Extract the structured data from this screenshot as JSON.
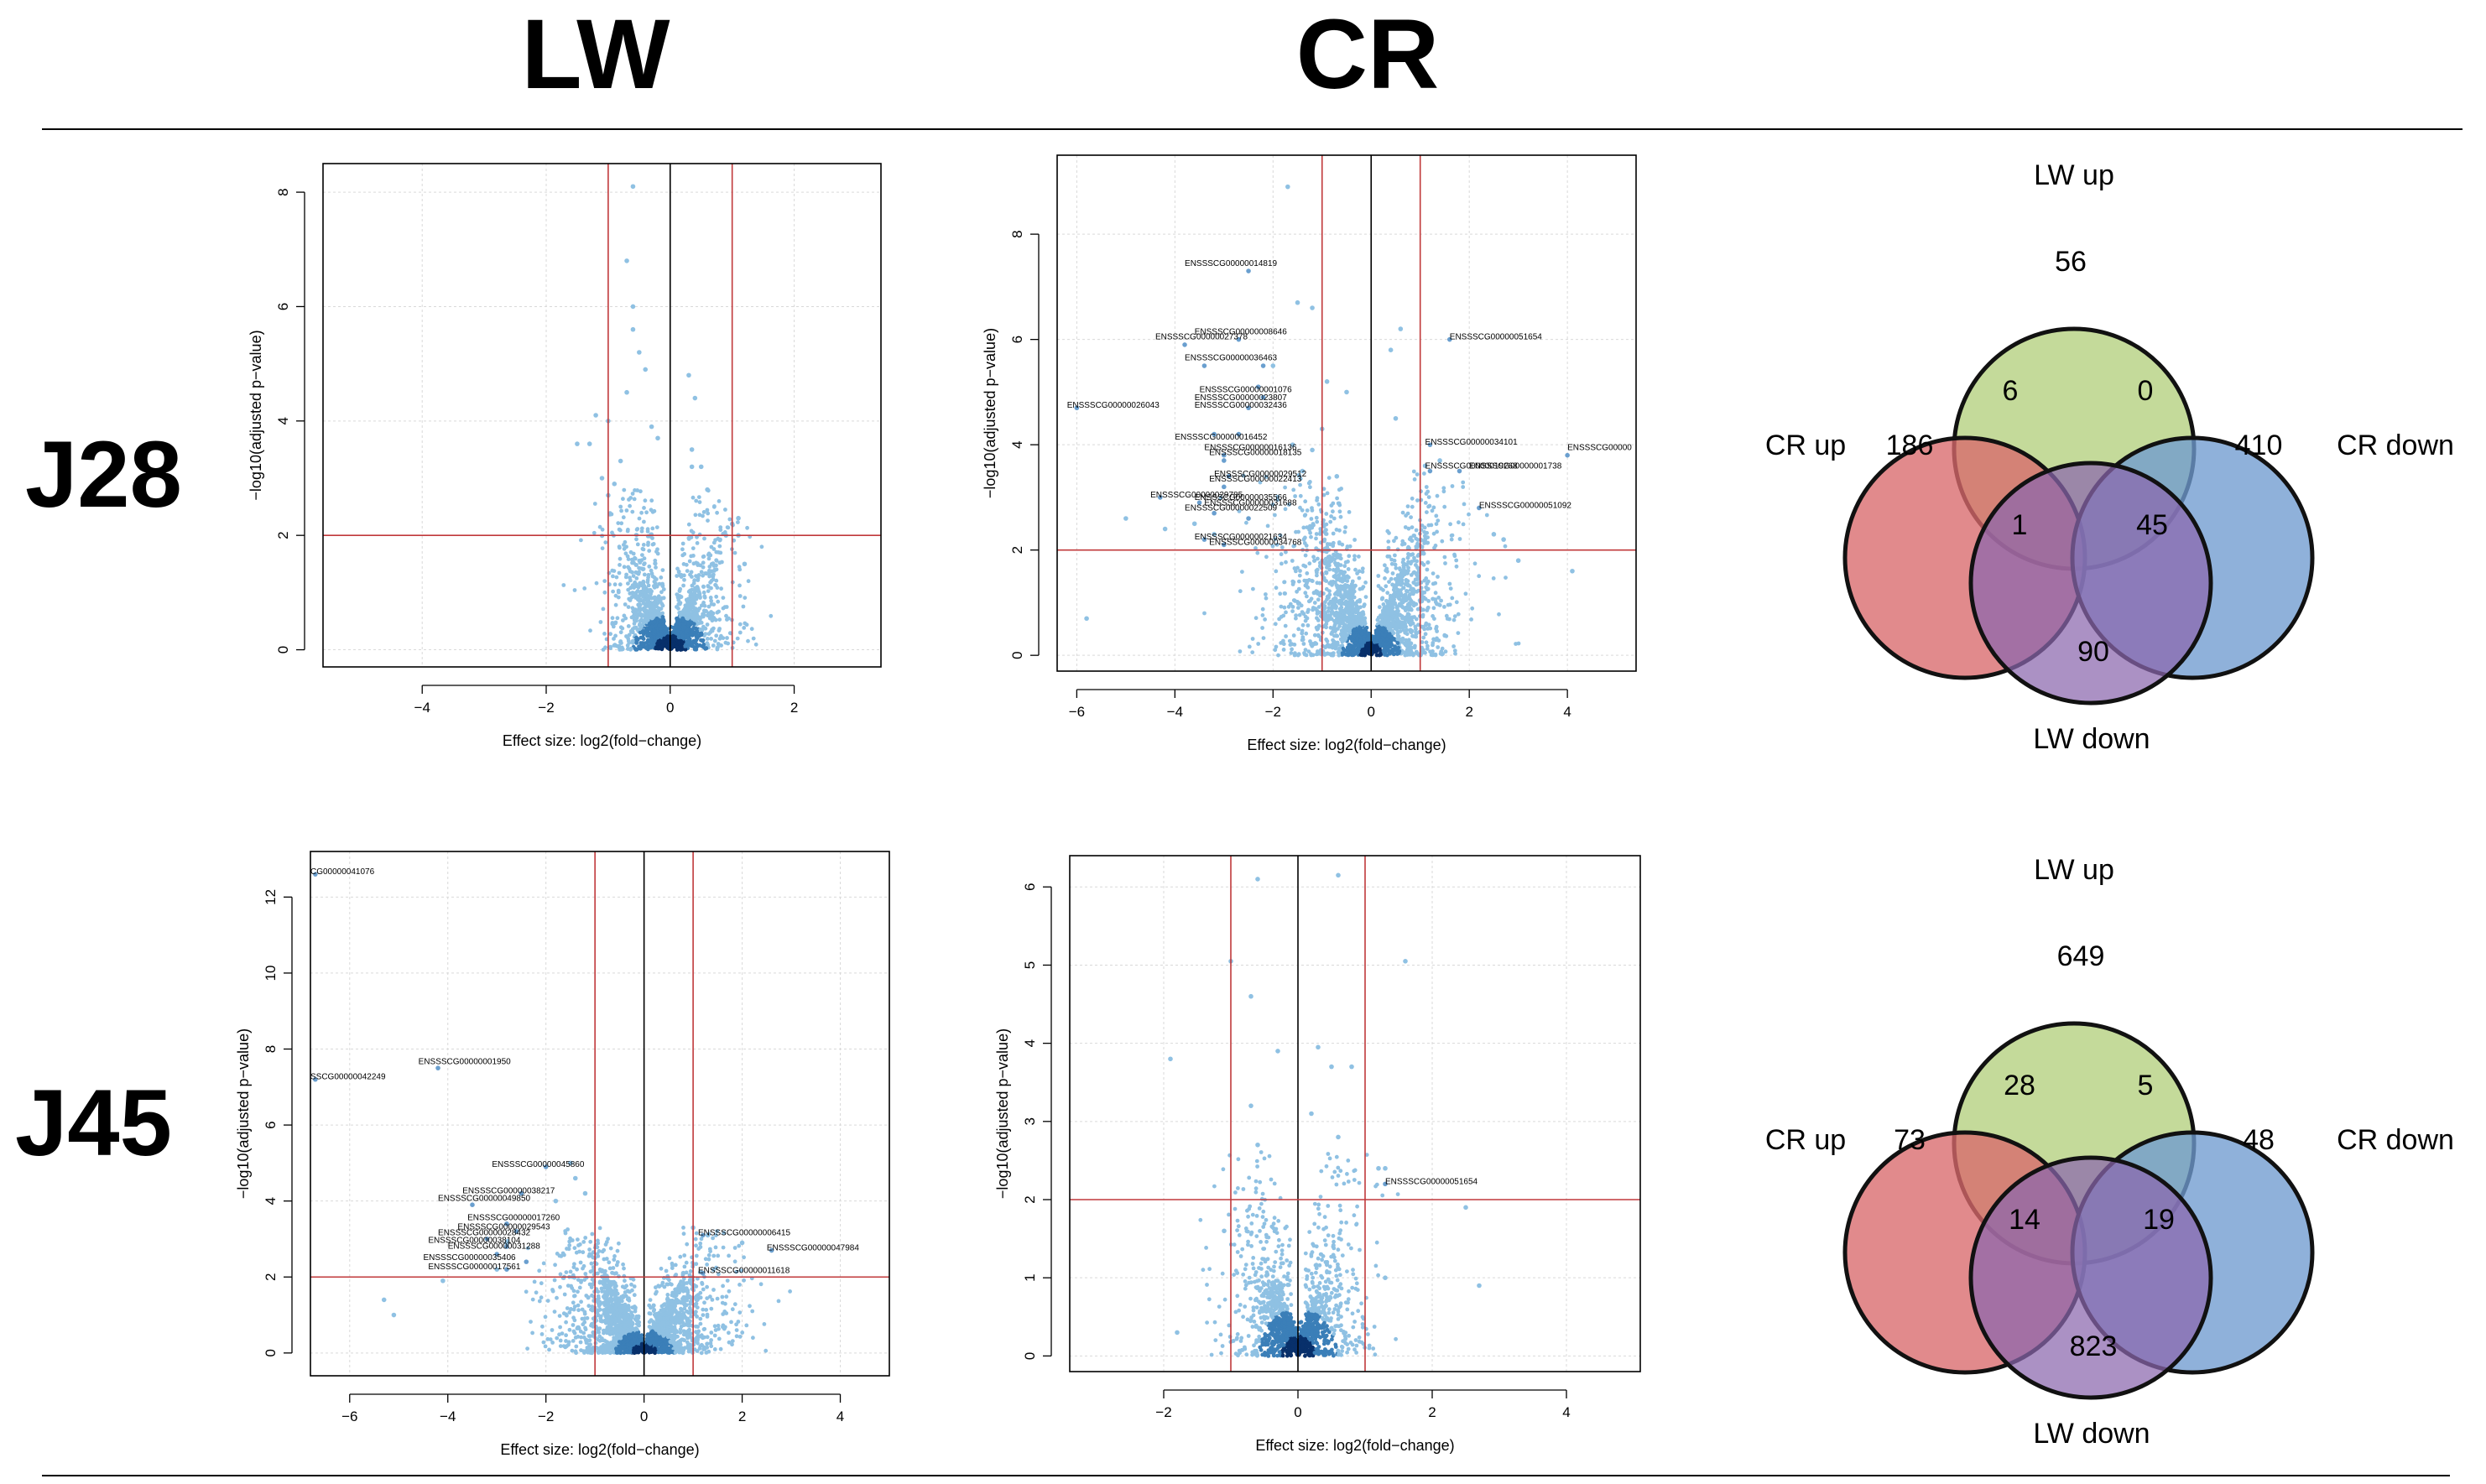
{
  "header": {
    "col1": "LW",
    "col2": "CR"
  },
  "rows": {
    "r1": "J28",
    "r2": "J45"
  },
  "colors": {
    "point": "#8fc1e3",
    "core": "#08306b",
    "threshold": "#c0393b",
    "zero": "#000000",
    "venn_lw_up": "#bcd58c",
    "venn_cr_up": "#d9696b",
    "venn_cr_down": "#6f9bd0",
    "venn_lw_down": "#8b67ad"
  },
  "chart_data": [
    {
      "type": "scatter",
      "panel": "J28-LW",
      "xlabel": "Effect size: log2(fold−change)",
      "ylabel": "−log10(adjusted p−value)",
      "xlim": [
        -5.6,
        3.4
      ],
      "ylim": [
        -0.3,
        8.5
      ],
      "xticks": [
        -4,
        -2,
        0,
        2
      ],
      "yticks": [
        0,
        2,
        4,
        6,
        8
      ],
      "thresholds": {
        "x": [
          -1,
          1
        ],
        "y": 2
      },
      "cloud": {
        "n": 1900,
        "spread": 0.45,
        "ymax": 2.6
      },
      "points": [
        [
          -0.6,
          8.1
        ],
        [
          -0.7,
          6.8
        ],
        [
          -0.6,
          6.0
        ],
        [
          -0.6,
          5.6
        ],
        [
          -0.5,
          5.2
        ],
        [
          -0.4,
          4.9
        ],
        [
          0.3,
          4.8
        ],
        [
          -0.7,
          4.5
        ],
        [
          -1.2,
          4.1
        ],
        [
          -1.0,
          4.0
        ],
        [
          0.4,
          4.4
        ],
        [
          -0.3,
          3.9
        ],
        [
          -1.3,
          3.6
        ],
        [
          -1.5,
          3.6
        ],
        [
          0.35,
          3.5
        ],
        [
          -0.8,
          3.3
        ],
        [
          0.35,
          3.2
        ],
        [
          -1.1,
          3.0
        ],
        [
          -0.9,
          2.9
        ],
        [
          0.6,
          2.8
        ],
        [
          -0.2,
          3.7
        ],
        [
          0.5,
          3.2
        ],
        [
          -1.0,
          2.7
        ],
        [
          1.1,
          2.3
        ],
        [
          1.0,
          2.2
        ],
        [
          1.1,
          2.0
        ],
        [
          1.2,
          1.5
        ],
        [
          0.9,
          2.0
        ]
      ],
      "labels": []
    },
    {
      "type": "scatter",
      "panel": "J28-CR",
      "xlabel": "Effect size: log2(fold−change)",
      "ylabel": "−log10(adjusted p−value)",
      "xlim": [
        -6.4,
        5.4
      ],
      "ylim": [
        -0.3,
        9.5
      ],
      "xticks": [
        -6,
        -4,
        -2,
        0,
        2,
        4
      ],
      "yticks": [
        0,
        2,
        4,
        6,
        8
      ],
      "thresholds": {
        "x": [
          -1,
          1
        ],
        "y": 2
      },
      "cloud": {
        "n": 2300,
        "spread": 0.9,
        "ymax": 3.2
      },
      "points": [
        [
          -1.7,
          8.9
        ],
        [
          -1.5,
          6.7
        ],
        [
          -1.2,
          6.6
        ],
        [
          0.6,
          6.2
        ],
        [
          0.4,
          5.8
        ],
        [
          -2.0,
          5.5
        ],
        [
          -0.9,
          5.2
        ],
        [
          -0.5,
          5.0
        ],
        [
          0.5,
          4.5
        ],
        [
          -1.0,
          4.3
        ],
        [
          -1.6,
          4.0
        ],
        [
          -1.2,
          3.9
        ],
        [
          1.1,
          3.6
        ],
        [
          1.4,
          3.7
        ],
        [
          -1.4,
          3.5
        ],
        [
          -0.7,
          3.4
        ],
        [
          -5.8,
          0.7
        ],
        [
          4.1,
          1.6
        ],
        [
          2.7,
          2.2
        ],
        [
          2.5,
          2.3
        ],
        [
          3.0,
          1.8
        ],
        [
          -5.0,
          2.6
        ],
        [
          -4.2,
          2.4
        ],
        [
          -3.6,
          2.5
        ],
        [
          -3.2,
          2.3
        ]
      ],
      "label_points": [
        [
          -2.5,
          7.3
        ],
        [
          -2.7,
          6.0
        ],
        [
          -3.8,
          5.9
        ],
        [
          -3.4,
          5.5
        ],
        [
          -2.2,
          5.5
        ],
        [
          -2.3,
          5.1
        ],
        [
          -2.2,
          4.9
        ],
        [
          -2.5,
          4.7
        ],
        [
          -6.0,
          4.7
        ],
        [
          -3.2,
          4.2
        ],
        [
          -2.7,
          4.2
        ],
        [
          -3.0,
          3.8
        ],
        [
          -3.0,
          3.7
        ],
        [
          -2.9,
          3.4
        ],
        [
          -3.0,
          3.2
        ],
        [
          -4.3,
          3.0
        ],
        [
          -3.5,
          2.9
        ],
        [
          -3.2,
          2.7
        ],
        [
          -2.5,
          2.6
        ],
        [
          -3.4,
          2.2
        ],
        [
          -3.0,
          2.1
        ],
        [
          1.6,
          6.0
        ],
        [
          1.2,
          4.0
        ],
        [
          4.0,
          3.8
        ],
        [
          1.2,
          3.5
        ],
        [
          1.8,
          3.5
        ],
        [
          2.2,
          2.8
        ]
      ],
      "labels": [
        {
          "t": "ENSSSCG00000014819",
          "x": -3.8,
          "y": 7.4
        },
        {
          "t": "ENSSSCG00000008646",
          "x": -3.6,
          "y": 6.1
        },
        {
          "t": "ENSSSCG00000027378",
          "x": -4.4,
          "y": 6.0
        },
        {
          "t": "ENSSSCG00000036463",
          "x": -3.8,
          "y": 5.6
        },
        {
          "t": "ENSSSCG00000001076",
          "x": -3.5,
          "y": 5.0
        },
        {
          "t": "ENSSSCG00000023807",
          "x": -3.6,
          "y": 4.85
        },
        {
          "t": "ENSSSCG00000026043",
          "x": -6.2,
          "y": 4.7
        },
        {
          "t": "ENSSSCG00000032436",
          "x": -3.6,
          "y": 4.7
        },
        {
          "t": "ENSSSCG00000016452",
          "x": -4.0,
          "y": 4.1
        },
        {
          "t": "ENSSSCG00000016136",
          "x": -3.4,
          "y": 3.9
        },
        {
          "t": "ENSSSCG00000018135",
          "x": -3.3,
          "y": 3.8
        },
        {
          "t": "ENSSSCG00000029512",
          "x": -3.2,
          "y": 3.4
        },
        {
          "t": "ENSSSCG00000022413",
          "x": -3.3,
          "y": 3.3
        },
        {
          "t": "ENSSSCG00000029785",
          "x": -4.5,
          "y": 3.0
        },
        {
          "t": "ENSSSCG00000035566",
          "x": -3.6,
          "y": 2.95
        },
        {
          "t": "ENSSSCG00000031688",
          "x": -3.4,
          "y": 2.85
        },
        {
          "t": "ENSSSCG00000022509",
          "x": -3.8,
          "y": 2.75
        },
        {
          "t": "ENSSSCG00000021634",
          "x": -3.6,
          "y": 2.2
        },
        {
          "t": "ENSSSCG00000034768",
          "x": -3.3,
          "y": 2.1
        },
        {
          "t": "ENSSSCG00000051654",
          "x": 1.6,
          "y": 6.0
        },
        {
          "t": "ENSSSCG00000034101",
          "x": 1.1,
          "y": 4.0
        },
        {
          "t": "ENSSSCG00000",
          "x": 4.0,
          "y": 3.9
        },
        {
          "t": "ENSSSCG00000019268",
          "x": 1.1,
          "y": 3.55
        },
        {
          "t": "ENSSSCG00000001738",
          "x": 2.0,
          "y": 3.55
        },
        {
          "t": "ENSSSCG00000051092",
          "x": 2.2,
          "y": 2.8
        }
      ]
    },
    {
      "type": "scatter",
      "panel": "J45-LW",
      "xlabel": "Effect size: log2(fold−change)",
      "ylabel": "−log10(adjusted p−value)",
      "xlim": [
        -6.8,
        5.0
      ],
      "ylim": [
        -0.6,
        13.2
      ],
      "xticks": [
        -6,
        -4,
        -2,
        0,
        2,
        4
      ],
      "yticks": [
        0,
        2,
        4,
        6,
        8,
        10,
        12
      ],
      "thresholds": {
        "x": [
          -1,
          1
        ],
        "y": 2
      },
      "cloud": {
        "n": 2500,
        "spread": 0.8,
        "ymax": 3.0
      },
      "points": [
        [
          -5.3,
          1.4
        ],
        [
          -5.1,
          1.0
        ],
        [
          -4.1,
          1.9
        ],
        [
          -2.8,
          2.9
        ],
        [
          -1.4,
          4.6
        ],
        [
          -1.5,
          5.0
        ],
        [
          -1.2,
          4.2
        ],
        [
          -1.8,
          4.0
        ],
        [
          1.0,
          3.3
        ],
        [
          1.3,
          3.1
        ],
        [
          2.0,
          2.9
        ],
        [
          0.8,
          2.1
        ],
        [
          -3.0,
          2.2
        ]
      ],
      "label_points": [
        [
          -6.7,
          12.6
        ],
        [
          -6.7,
          7.2
        ],
        [
          -4.2,
          7.5
        ],
        [
          -2.0,
          4.9
        ],
        [
          -2.5,
          4.2
        ],
        [
          -3.5,
          3.9
        ],
        [
          -2.8,
          3.4
        ],
        [
          -2.6,
          3.2
        ],
        [
          -3.2,
          3.0
        ],
        [
          -2.8,
          2.8
        ],
        [
          -3.0,
          2.6
        ],
        [
          -2.4,
          2.4
        ],
        [
          -2.8,
          2.2
        ],
        [
          1.2,
          3.1
        ],
        [
          2.6,
          2.7
        ],
        [
          1.2,
          2.1
        ]
      ],
      "labels": [
        {
          "t": "CG00000041076",
          "x": -6.8,
          "y": 12.6
        },
        {
          "t": "SSCG00000042249",
          "x": -6.8,
          "y": 7.2
        },
        {
          "t": "ENSSSCG00000001950",
          "x": -4.6,
          "y": 7.6
        },
        {
          "t": "ENSSSCG00000045860",
          "x": -3.1,
          "y": 4.9
        },
        {
          "t": "ENSSSCG00000038217",
          "x": -3.7,
          "y": 4.2
        },
        {
          "t": "ENSSSCG00000049850",
          "x": -4.2,
          "y": 4.0
        },
        {
          "t": "ENSSSCG00000017260",
          "x": -3.6,
          "y": 3.5
        },
        {
          "t": "ENSSSCG00000029543",
          "x": -3.8,
          "y": 3.25
        },
        {
          "t": "ENSSSCG00000028432",
          "x": -4.2,
          "y": 3.1
        },
        {
          "t": "ENSSSCG00000038104",
          "x": -4.4,
          "y": 2.9
        },
        {
          "t": "ENSSSCG00000031288",
          "x": -4.0,
          "y": 2.75
        },
        {
          "t": "ENSSSCG00000035406",
          "x": -4.5,
          "y": 2.45
        },
        {
          "t": "ENSSSCG00000017561",
          "x": -4.4,
          "y": 2.2
        },
        {
          "t": "ENSSSCG00000006415",
          "x": 1.1,
          "y": 3.1
        },
        {
          "t": "ENSSSCG00000047984",
          "x": 2.5,
          "y": 2.7
        },
        {
          "t": "ENSSSCG00000011618",
          "x": 1.1,
          "y": 2.1
        }
      ]
    },
    {
      "type": "scatter",
      "panel": "J45-CR",
      "xlabel": "Effect size: log2(fold−change)",
      "ylabel": "−log10(adjusted p−value)",
      "xlim": [
        -3.4,
        5.1
      ],
      "ylim": [
        -0.2,
        6.4
      ],
      "xticks": [
        -2,
        0,
        2,
        4
      ],
      "yticks": [
        0,
        1,
        2,
        3,
        4,
        5,
        6
      ],
      "thresholds": {
        "x": [
          -1,
          1
        ],
        "y": 2
      },
      "cloud": {
        "n": 1500,
        "spread": 0.45,
        "ymax": 2.4
      },
      "points": [
        [
          -0.6,
          6.1
        ],
        [
          0.6,
          6.15
        ],
        [
          -1.0,
          5.05
        ],
        [
          1.6,
          5.05
        ],
        [
          -1.9,
          3.8
        ],
        [
          -0.7,
          4.6
        ],
        [
          -0.3,
          3.9
        ],
        [
          0.3,
          3.95
        ],
        [
          0.5,
          3.7
        ],
        [
          0.8,
          3.7
        ],
        [
          -0.7,
          3.2
        ],
        [
          0.2,
          3.1
        ],
        [
          0.6,
          2.8
        ],
        [
          1.2,
          2.4
        ],
        [
          1.3,
          2.4
        ],
        [
          2.5,
          1.9
        ],
        [
          2.7,
          0.9
        ],
        [
          -1.8,
          0.3
        ],
        [
          -1.1,
          1.6
        ],
        [
          1.3,
          1.0
        ],
        [
          -0.6,
          2.7
        ]
      ],
      "label_points": [
        [
          1.3,
          2.2
        ]
      ],
      "labels": [
        {
          "t": "ENSSSCG00000051654",
          "x": 1.3,
          "y": 2.2
        }
      ]
    }
  ],
  "venn_j28": {
    "labels": {
      "lw_up": "LW up",
      "cr_up": "CR up",
      "cr_down": "CR down",
      "lw_down": "LW down"
    },
    "counts": {
      "lw_up": "56",
      "cr_up": "186",
      "cr_down": "410",
      "lw_down": "90",
      "lwup_crup": "6",
      "lwup_crdown": "0",
      "crup_lwdown": "1",
      "crdown_lwdown": "45"
    }
  },
  "venn_j45": {
    "labels": {
      "lw_up": "LW up",
      "cr_up": "CR up",
      "cr_down": "CR down",
      "lw_down": "LW down"
    },
    "counts": {
      "lw_up": "649",
      "cr_up": "73",
      "cr_down": "48",
      "lw_down": "823",
      "lwup_crup": "28",
      "lwup_crdown": "5",
      "crup_lwdown": "14",
      "crdown_lwdown": "19"
    }
  }
}
